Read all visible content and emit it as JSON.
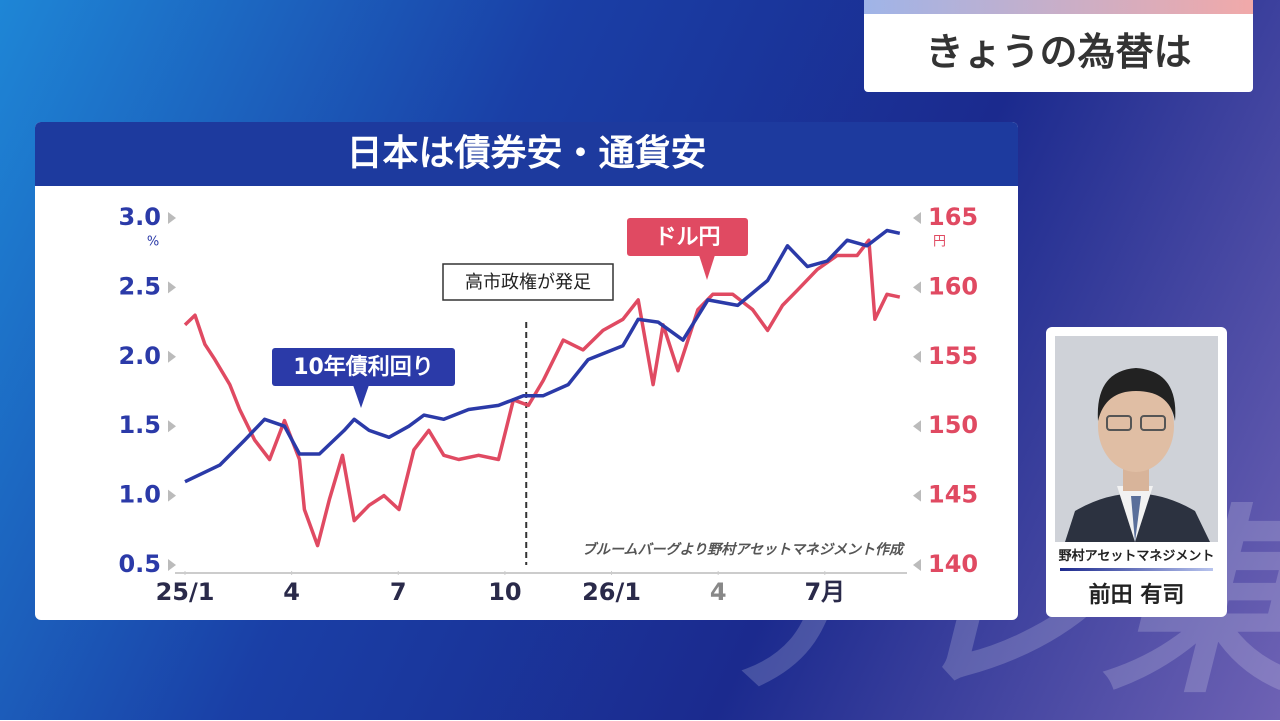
{
  "header": {
    "title": "きょうの為替は"
  },
  "chart_data": {
    "type": "line",
    "title": "日本は債券安・通貨安",
    "y_unit": "%",
    "y2_unit": "円",
    "xlim": [
      0,
      20.2
    ],
    "xticks": [
      {
        "value": 0,
        "label": "25/1"
      },
      {
        "value": 3,
        "label": "4"
      },
      {
        "value": 6,
        "label": "7"
      },
      {
        "value": 9,
        "label": "10"
      },
      {
        "value": 12,
        "label": "26/1"
      },
      {
        "value": 15,
        "label": "4"
      },
      {
        "value": 18,
        "label": "7月"
      }
    ],
    "ylim": [
      0.5,
      3.0
    ],
    "yticks": [
      {
        "value": 0.5,
        "label": "0.5"
      },
      {
        "value": 1,
        "label": "1.0"
      },
      {
        "value": 1.5,
        "label": "1.5"
      },
      {
        "value": 2,
        "label": "2.0"
      },
      {
        "value": 2.5,
        "label": "2.5"
      },
      {
        "value": 3,
        "label": "3.0"
      }
    ],
    "y2lim": [
      140,
      165
    ],
    "y2ticks": [
      140,
      145,
      150,
      155,
      160,
      165
    ],
    "series": [
      {
        "name": "10年債利回り",
        "color": "#2b3aa8",
        "axis": "y",
        "x": [
          0,
          0.98,
          1.68,
          2.24,
          2.8,
          3.22,
          3.78,
          4.48,
          4.76,
          5.18,
          5.74,
          6.3,
          6.72,
          7.28,
          7.98,
          8.82,
          9.52,
          10.08,
          10.78,
          11.34,
          12.32,
          12.75,
          13.31,
          14.01,
          14.71,
          15.55,
          16.39,
          16.95,
          17.51,
          18.07,
          18.63,
          19.19,
          19.75,
          20.11
        ],
        "values": [
          1.1,
          1.22,
          1.4,
          1.55,
          1.5,
          1.3,
          1.3,
          1.47,
          1.55,
          1.47,
          1.42,
          1.5,
          1.58,
          1.55,
          1.62,
          1.65,
          1.72,
          1.72,
          1.8,
          1.98,
          2.08,
          2.27,
          2.25,
          2.12,
          2.41,
          2.37,
          2.55,
          2.8,
          2.65,
          2.69,
          2.84,
          2.8,
          2.91,
          2.89
        ]
      },
      {
        "name": "ドル円",
        "color": "#e04a62",
        "axis": "y2",
        "x": [
          0,
          0.28,
          0.56,
          0.84,
          1.26,
          1.54,
          1.96,
          2.38,
          2.8,
          3.22,
          3.36,
          3.73,
          4.06,
          4.43,
          4.76,
          5.18,
          5.6,
          6.02,
          6.44,
          6.86,
          7.28,
          7.7,
          8.26,
          8.82,
          9.24,
          9.66,
          10.08,
          10.64,
          11.2,
          11.76,
          12.32,
          12.75,
          13.17,
          13.45,
          13.87,
          14.43,
          14.85,
          15.41,
          15.97,
          16.39,
          16.81,
          17.23,
          17.79,
          18.35,
          18.91,
          19.24,
          19.41,
          19.75,
          20.11
        ],
        "values": [
          157.3,
          158,
          155.9,
          154.8,
          153,
          151.2,
          149,
          147.6,
          150.4,
          147.6,
          144,
          141.4,
          144.7,
          147.9,
          143.2,
          144.3,
          145,
          144,
          148.3,
          149.7,
          147.9,
          147.6,
          147.9,
          147.6,
          151.9,
          151.5,
          153.3,
          156.2,
          155.5,
          156.9,
          157.7,
          159.1,
          153,
          157.3,
          154,
          158.4,
          159.5,
          159.5,
          158.4,
          156.9,
          158.7,
          159.8,
          161.3,
          162.3,
          162.3,
          163.4,
          157.7,
          159.5,
          159.3
        ]
      }
    ],
    "annotation": {
      "text": "高市政権が発足",
      "x": 9.6
    },
    "source": "ブルームバーグより野村アセットマネジメント作成"
  },
  "presenter": {
    "company": "野村アセットマネジメント",
    "name": "前田 有司"
  },
  "watermark": "テレ東"
}
